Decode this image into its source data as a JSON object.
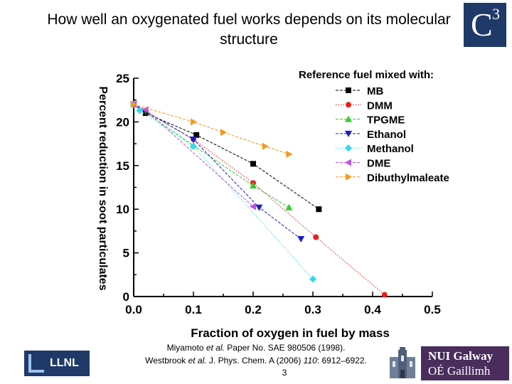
{
  "slide": {
    "title": "How well an oxygenated fuel works depends on its molecular structure",
    "logo_c3": {
      "letter": "C",
      "superscript": "3"
    },
    "logo_llnl": "LLNL",
    "logo_nuig": {
      "line1": "NUI Galway",
      "line2": "OÉ Gaillimh"
    },
    "references": {
      "ref1_pre": "Miyamoto ",
      "ref1_italic": "et al.",
      "ref1_post": " Paper No. SAE 980506 (1998).",
      "ref2_pre": "Westbrook ",
      "ref2_italic": "et al.",
      "ref2_mid": " J. Phys. Chem. A (2006) ",
      "ref2_vol": "110",
      "ref2_post": ": 6912–6922."
    },
    "page_number": "3"
  },
  "colors": {
    "mb": "#000000",
    "dmm": "#e8201f",
    "tpgme": "#2fcf2f",
    "ethanol": "#1a1acc",
    "methanol": "#33d8f0",
    "dme": "#c050e0",
    "dibuthylmaleate": "#f39a1c",
    "c3_logo": "#1f3a68",
    "nuig_logo": "#4a2d5c"
  },
  "chart_data": {
    "type": "line",
    "title": "",
    "xlabel": "Fraction of oxygen in fuel by mass",
    "ylabel": "Percent reduction in soot particulates",
    "xlim": [
      0.0,
      0.5
    ],
    "ylim": [
      0,
      25
    ],
    "x_ticks": [
      "0.0",
      "0.1",
      "0.2",
      "0.3",
      "0.4",
      "0.5"
    ],
    "y_ticks": [
      "0",
      "5",
      "10",
      "15",
      "20",
      "25"
    ],
    "grid": false,
    "legend_title": "Reference fuel mixed with:",
    "legend_position": "top-right",
    "series": [
      {
        "name": "MB",
        "key": "mb",
        "marker": "square",
        "line": "dash",
        "x": [
          0.0,
          0.02,
          0.105,
          0.2,
          0.31
        ],
        "y": [
          22,
          21,
          18.5,
          15.2,
          10
        ]
      },
      {
        "name": "DMM",
        "key": "dmm",
        "marker": "circle",
        "line": "dot",
        "x": [
          0.0,
          0.1,
          0.2,
          0.305,
          0.42
        ],
        "y": [
          22,
          18,
          13,
          6.8,
          0.2
        ]
      },
      {
        "name": "TPGME",
        "key": "tpgme",
        "marker": "triangle-up",
        "line": "dash",
        "x": [
          0.0,
          0.1,
          0.2,
          0.26
        ],
        "y": [
          22,
          17.3,
          12.7,
          10.2
        ]
      },
      {
        "name": "Ethanol",
        "key": "ethanol",
        "marker": "triangle-down",
        "line": "dash",
        "x": [
          0.0,
          0.1,
          0.21,
          0.28
        ],
        "y": [
          22,
          18,
          10.2,
          6.6
        ]
      },
      {
        "name": "Methanol",
        "key": "methanol",
        "marker": "diamond",
        "line": "dot",
        "x": [
          0.0,
          0.01,
          0.1,
          0.3
        ],
        "y": [
          22,
          21.3,
          17.2,
          2.0
        ]
      },
      {
        "name": "DME",
        "key": "dme",
        "marker": "triangle-left",
        "line": "dash",
        "x": [
          0.0,
          0.02,
          0.2
        ],
        "y": [
          22,
          21.4,
          10.3
        ]
      },
      {
        "name": "Dibuthylmaleate",
        "key": "dibuthylmaleate",
        "marker": "triangle-right",
        "line": "dash",
        "x": [
          0.0,
          0.1,
          0.15,
          0.22,
          0.26
        ],
        "y": [
          22,
          20,
          18.8,
          17.2,
          16.3
        ]
      }
    ]
  }
}
